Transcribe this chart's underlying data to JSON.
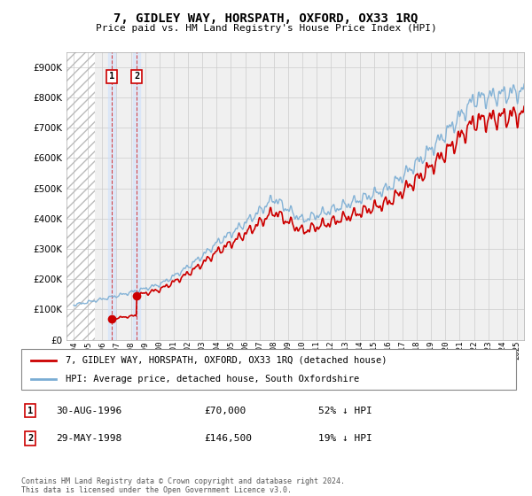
{
  "title": "7, GIDLEY WAY, HORSPATH, OXFORD, OX33 1RQ",
  "subtitle": "Price paid vs. HM Land Registry's House Price Index (HPI)",
  "legend_label_red": "7, GIDLEY WAY, HORSPATH, OXFORD, OX33 1RQ (detached house)",
  "legend_label_blue": "HPI: Average price, detached house, South Oxfordshire",
  "transaction1_date": "30-AUG-1996",
  "transaction1_price": "£70,000",
  "transaction1_hpi": "52% ↓ HPI",
  "transaction1_year": 1996.66,
  "transaction1_value": 70000,
  "transaction2_date": "29-MAY-1998",
  "transaction2_price": "£146,500",
  "transaction2_hpi": "19% ↓ HPI",
  "transaction2_year": 1998.41,
  "transaction2_value": 146500,
  "footer": "Contains HM Land Registry data © Crown copyright and database right 2024.\nThis data is licensed under the Open Government Licence v3.0.",
  "ylim": [
    0,
    950000
  ],
  "xlim_start": 1993.5,
  "xlim_end": 2025.5,
  "hatch_end_year": 1995.5,
  "red_color": "#cc0000",
  "blue_color": "#7aadd4",
  "hatch_color": "#cccccc",
  "grid_color": "#cccccc",
  "background_color": "#ffffff",
  "plot_bg_color": "#f0f0f0"
}
